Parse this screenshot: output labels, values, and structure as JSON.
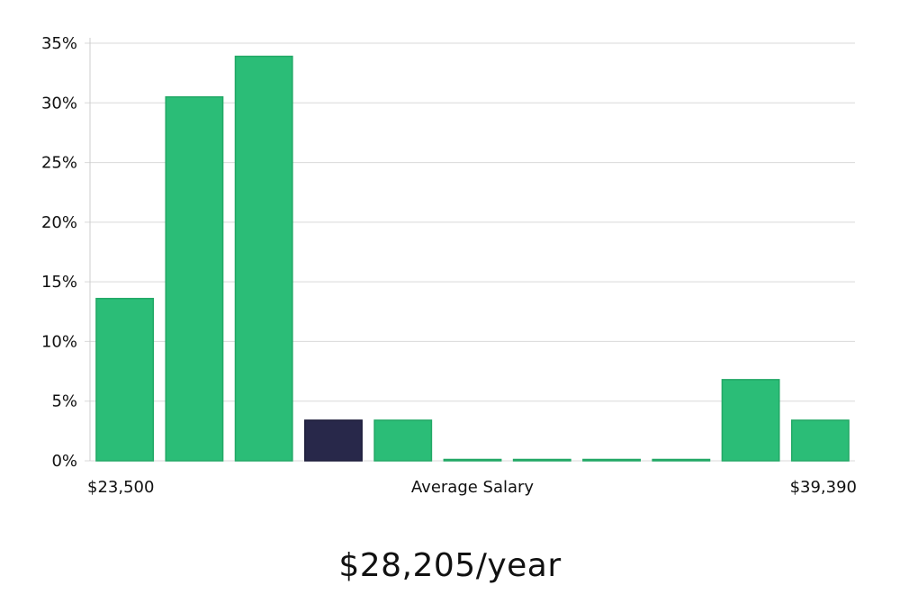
{
  "chart_data": {
    "type": "bar",
    "title": "",
    "xlabel": "Average Salary",
    "ylabel": "",
    "x_range_labels": {
      "min": "$23,500",
      "max": "$39,390"
    },
    "y_ticks": [
      "0%",
      "5%",
      "10%",
      "15%",
      "20%",
      "25%",
      "30%",
      "35%"
    ],
    "ylim": [
      0,
      35
    ],
    "grid": true,
    "bins": 11,
    "values": [
      13.6,
      30.5,
      33.9,
      3.4,
      3.4,
      0,
      0,
      0,
      0,
      6.8,
      3.4
    ],
    "highlight_index": 3
  },
  "colors": {
    "bar": "#2bbd77",
    "bar_stroke": "#22a866",
    "highlight": "#28284a",
    "grid": "#d9d9d9",
    "axis": "#cccccc"
  },
  "summary": {
    "salary_text": "$28,205/year"
  }
}
